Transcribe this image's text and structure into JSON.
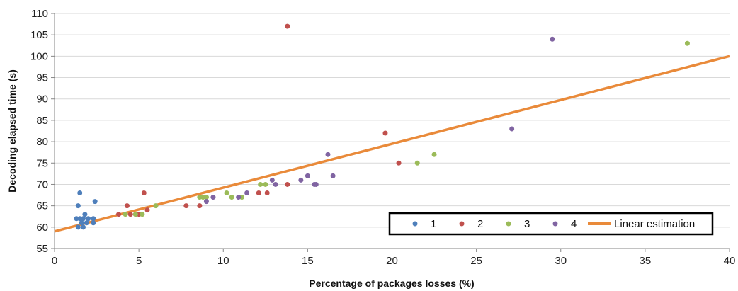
{
  "chart_data": {
    "type": "scatter",
    "xlabel": "Percentage of packages losses (%)",
    "ylabel": "Decoding elapsed time (s)",
    "xlim": [
      0,
      40
    ],
    "ylim": [
      55,
      110
    ],
    "x_ticks": [
      0,
      5,
      10,
      15,
      20,
      25,
      30,
      35,
      40
    ],
    "y_ticks": [
      55,
      60,
      65,
      70,
      75,
      80,
      85,
      90,
      95,
      100,
      105,
      110
    ],
    "grid": "horizontal",
    "legend_position": "bottom-right",
    "series": [
      {
        "name": "1",
        "color": "#4e7fbb",
        "points": [
          {
            "x": 1.3,
            "y": 62
          },
          {
            "x": 1.4,
            "y": 60
          },
          {
            "x": 1.4,
            "y": 65
          },
          {
            "x": 1.5,
            "y": 62
          },
          {
            "x": 1.5,
            "y": 68
          },
          {
            "x": 1.6,
            "y": 61
          },
          {
            "x": 1.7,
            "y": 62
          },
          {
            "x": 1.7,
            "y": 60
          },
          {
            "x": 1.8,
            "y": 63
          },
          {
            "x": 1.9,
            "y": 61
          },
          {
            "x": 2.0,
            "y": 62
          },
          {
            "x": 2.3,
            "y": 61
          },
          {
            "x": 2.3,
            "y": 62
          },
          {
            "x": 2.4,
            "y": 66
          }
        ]
      },
      {
        "name": "2",
        "color": "#c0504d",
        "points": [
          {
            "x": 3.8,
            "y": 63
          },
          {
            "x": 4.3,
            "y": 65
          },
          {
            "x": 4.5,
            "y": 63
          },
          {
            "x": 4.8,
            "y": 63
          },
          {
            "x": 5.0,
            "y": 63
          },
          {
            "x": 5.3,
            "y": 68
          },
          {
            "x": 5.5,
            "y": 64
          },
          {
            "x": 7.8,
            "y": 65
          },
          {
            "x": 8.6,
            "y": 65
          },
          {
            "x": 12.1,
            "y": 68
          },
          {
            "x": 12.6,
            "y": 68
          },
          {
            "x": 13.8,
            "y": 70
          },
          {
            "x": 13.8,
            "y": 107
          },
          {
            "x": 19.6,
            "y": 82
          },
          {
            "x": 20.4,
            "y": 75
          }
        ]
      },
      {
        "name": "3",
        "color": "#9bbb59",
        "points": [
          {
            "x": 4.2,
            "y": 63
          },
          {
            "x": 4.8,
            "y": 63
          },
          {
            "x": 5.2,
            "y": 63
          },
          {
            "x": 6.0,
            "y": 65
          },
          {
            "x": 8.6,
            "y": 67
          },
          {
            "x": 8.8,
            "y": 67
          },
          {
            "x": 9.0,
            "y": 67
          },
          {
            "x": 10.2,
            "y": 68
          },
          {
            "x": 10.5,
            "y": 67
          },
          {
            "x": 11.1,
            "y": 67
          },
          {
            "x": 12.2,
            "y": 70
          },
          {
            "x": 12.5,
            "y": 70
          },
          {
            "x": 21.5,
            "y": 75
          },
          {
            "x": 22.5,
            "y": 77
          },
          {
            "x": 37.5,
            "y": 103
          }
        ]
      },
      {
        "name": "4",
        "color": "#8064a2",
        "points": [
          {
            "x": 9.0,
            "y": 66
          },
          {
            "x": 9.4,
            "y": 67
          },
          {
            "x": 10.9,
            "y": 67
          },
          {
            "x": 11.4,
            "y": 68
          },
          {
            "x": 12.9,
            "y": 71
          },
          {
            "x": 13.1,
            "y": 70
          },
          {
            "x": 14.6,
            "y": 71
          },
          {
            "x": 15.0,
            "y": 72
          },
          {
            "x": 15.4,
            "y": 70
          },
          {
            "x": 15.5,
            "y": 70
          },
          {
            "x": 16.2,
            "y": 77
          },
          {
            "x": 16.5,
            "y": 72
          },
          {
            "x": 27.1,
            "y": 83
          },
          {
            "x": 29.5,
            "y": 104
          }
        ]
      }
    ],
    "trendline": {
      "name": "Linear estimation",
      "color": "#e98a3a",
      "points": [
        {
          "x": 0,
          "y": 59
        },
        {
          "x": 40,
          "y": 100
        }
      ]
    }
  }
}
